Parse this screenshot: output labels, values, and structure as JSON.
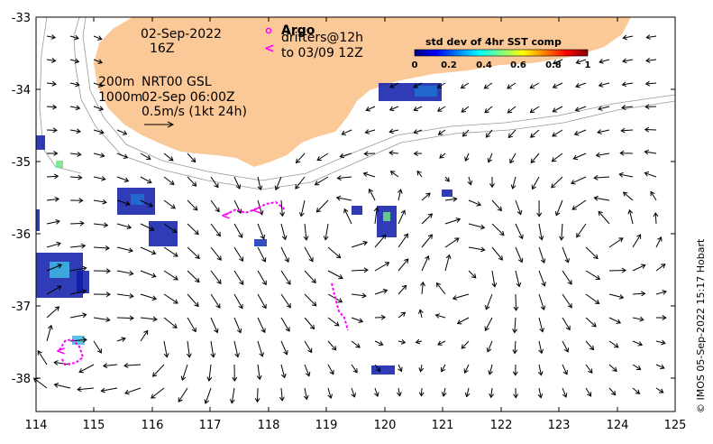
{
  "colors": {
    "land": "#fbc898",
    "ocean": "#ffffff",
    "argo_marker": "#ff00ff",
    "arrow": "#000000",
    "contour": "#999999",
    "sst_blobs": [
      "#0a1aa8",
      "#1f6fd0",
      "#3fb8e0",
      "#6ee08a",
      "#1030b8"
    ]
  },
  "axes": {
    "x_ticks": [
      "114",
      "115",
      "116",
      "117",
      "118",
      "119",
      "120",
      "121",
      "122",
      "123",
      "124",
      "125"
    ],
    "y_ticks": [
      "-33",
      "-34",
      "-35",
      "-36",
      "-37",
      "-38"
    ]
  },
  "annotations": {
    "date": "02-Sep-2022",
    "hour": "16Z",
    "argo_title": "Argo",
    "drifters_line1": "drifters@12h",
    "drifters_line2": "to 03/09 12Z",
    "contour_200": "200m",
    "contour_1000": "1000m",
    "product": "NRT00 GSL",
    "product_time": "02-Sep 06:00Z",
    "scale": "0.5m/s (1kt 24h)"
  },
  "colorbar": {
    "title": "std dev of 4hr SST comp",
    "ticks": [
      "0",
      "0.2",
      "0.4",
      "0.6",
      "0.8",
      "1"
    ],
    "range": [
      0,
      1
    ]
  },
  "credit": "© IMOS 05-Sep-2022 15:17 Hobart"
}
